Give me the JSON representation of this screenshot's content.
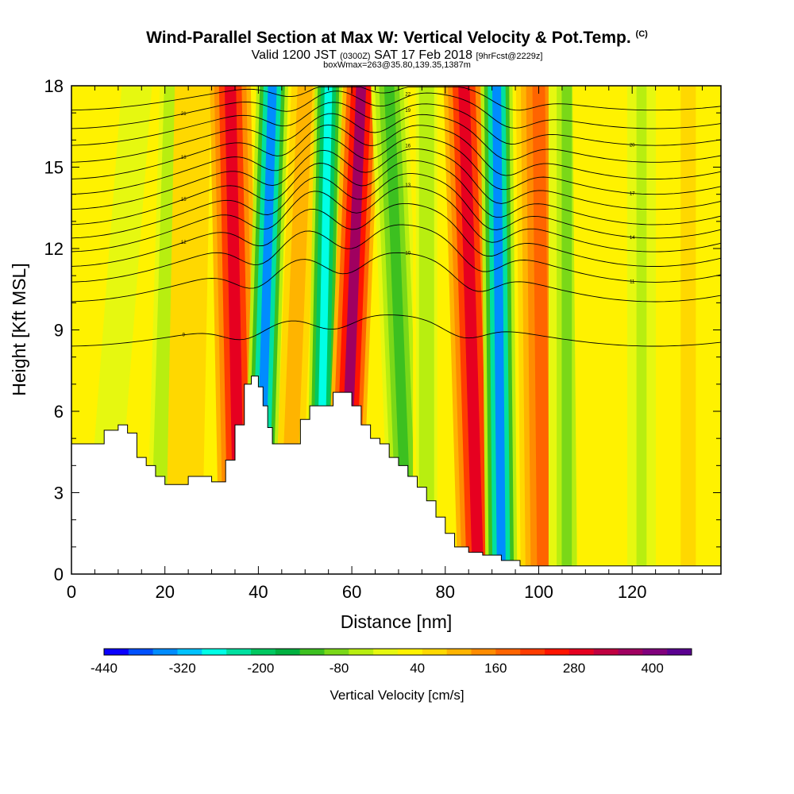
{
  "header": {
    "title": "Wind-Parallel Section at Max W: Vertical Velocity & Pot.Temp.",
    "copyright": "(C)",
    "valid_prefix": "Valid 1200 JST",
    "valid_utc": "(0300Z)",
    "valid_date": "SAT 17 Feb 2018",
    "forecast": "[9hrFcst@2229z]",
    "box_info": "boxWmax=263@35.80,139.35,1387m"
  },
  "chart_data": {
    "type": "heatmap",
    "xlabel": "Distance [nm]",
    "ylabel": "Height [Kft MSL]",
    "xlim": [
      0,
      139
    ],
    "ylim": [
      0,
      18
    ],
    "x_ticks": [
      0,
      20,
      40,
      60,
      80,
      100,
      120
    ],
    "y_ticks": [
      0,
      3,
      6,
      9,
      12,
      15,
      18
    ],
    "colorbar": {
      "label": "Vertical Velocity [cm/s]",
      "tick_values": [
        -440,
        -320,
        -200,
        -80,
        40,
        160,
        280,
        400
      ],
      "tick_labels": [
        "-440",
        "-320",
        "-200",
        "-80",
        "40",
        "160",
        "280",
        "400"
      ],
      "range": [
        -440,
        460
      ],
      "colors": [
        "#0a00ff",
        "#0050ff",
        "#008cff",
        "#00c2ff",
        "#00ffe6",
        "#00e0a0",
        "#00c860",
        "#00b040",
        "#3cc020",
        "#7ad818",
        "#b8ee10",
        "#e6f810",
        "#fff200",
        "#ffd800",
        "#ffb400",
        "#ff8c00",
        "#ff6400",
        "#ff3c00",
        "#ff1400",
        "#e60020",
        "#c00040",
        "#a00060",
        "#80007c",
        "#5a0090"
      ]
    },
    "bands": [
      {
        "x_top": 4,
        "x_bottom": 0,
        "width": 7,
        "w": 40
      },
      {
        "x_top": 14,
        "x_bottom": 6,
        "width": 6,
        "w": -20
      },
      {
        "x_top": 22,
        "x_bottom": 19,
        "width": 4,
        "w": -60
      },
      {
        "x_top": 26,
        "x_bottom": 24,
        "width": 4,
        "w": 80
      },
      {
        "x_top": 34,
        "x_bottom": 36,
        "width": 4.5,
        "w": 300
      },
      {
        "x_top": 43,
        "x_bottom": 40,
        "width": 3.5,
        "w": -360
      },
      {
        "x_top": 50,
        "x_bottom": 46,
        "width": 3,
        "w": 120
      },
      {
        "x_top": 55,
        "x_bottom": 53,
        "width": 3,
        "w": -280
      },
      {
        "x_top": 62,
        "x_bottom": 58,
        "width": 4,
        "w": 360
      },
      {
        "x_top": 68,
        "x_bottom": 72,
        "width": 4,
        "w": -120
      },
      {
        "x_top": 76,
        "x_bottom": 76,
        "width": 3,
        "w": -60
      },
      {
        "x_top": 84,
        "x_bottom": 87,
        "width": 4.5,
        "w": 300
      },
      {
        "x_top": 91,
        "x_bottom": 92,
        "width": 3.5,
        "w": -340
      },
      {
        "x_top": 100,
        "x_bottom": 101,
        "width": 5,
        "w": 180
      },
      {
        "x_top": 106,
        "x_bottom": 106,
        "width": 4,
        "w": -100
      },
      {
        "x_top": 115,
        "x_bottom": 116,
        "width": 8,
        "w": 40
      },
      {
        "x_top": 122,
        "x_bottom": 122,
        "width": 4,
        "w": -40
      },
      {
        "x_top": 132,
        "x_bottom": 132,
        "width": 6,
        "w": 50
      }
    ],
    "terrain": [
      [
        0,
        4.8
      ],
      [
        3,
        4.8
      ],
      [
        6,
        4.8
      ],
      [
        7,
        5.3
      ],
      [
        10,
        5.5
      ],
      [
        12,
        5.2
      ],
      [
        14,
        4.3
      ],
      [
        16,
        4.0
      ],
      [
        18,
        3.6
      ],
      [
        20,
        3.3
      ],
      [
        23,
        3.3
      ],
      [
        25,
        3.6
      ],
      [
        27,
        3.6
      ],
      [
        30,
        3.4
      ],
      [
        33,
        4.2
      ],
      [
        35,
        5.5
      ],
      [
        37,
        7.0
      ],
      [
        38.5,
        7.3
      ],
      [
        40,
        6.9
      ],
      [
        41,
        6.2
      ],
      [
        42,
        5.4
      ],
      [
        43,
        4.8
      ],
      [
        47,
        4.8
      ],
      [
        49,
        5.7
      ],
      [
        51,
        6.2
      ],
      [
        54,
        6.2
      ],
      [
        56,
        6.7
      ],
      [
        58,
        6.7
      ],
      [
        60,
        6.2
      ],
      [
        62,
        5.5
      ],
      [
        64,
        5.0
      ],
      [
        66,
        4.8
      ],
      [
        68,
        4.3
      ],
      [
        70,
        4.0
      ],
      [
        72,
        3.6
      ],
      [
        74,
        3.2
      ],
      [
        76,
        2.7
      ],
      [
        78,
        2.1
      ],
      [
        80,
        1.5
      ],
      [
        82,
        1.0
      ],
      [
        85,
        0.8
      ],
      [
        88,
        0.7
      ],
      [
        92,
        0.5
      ],
      [
        96,
        0.3
      ],
      [
        139,
        0.3
      ]
    ],
    "isentropes": [
      {
        "base": 9.0,
        "amp": 1.0,
        "label": "9"
      },
      {
        "base": 11.0,
        "amp": 1.6,
        "label": "10"
      },
      {
        "base": 11.9,
        "amp": 1.9,
        "label": "11"
      },
      {
        "base": 12.6,
        "amp": 2.1,
        "label": "12"
      },
      {
        "base": 13.2,
        "amp": 2.2,
        "label": "13"
      },
      {
        "base": 13.7,
        "amp": 2.2,
        "label": "14"
      },
      {
        "base": 14.2,
        "amp": 2.2,
        "label": "15"
      },
      {
        "base": 14.7,
        "amp": 2.1,
        "label": "16"
      },
      {
        "base": 15.2,
        "amp": 2.0,
        "label": "17"
      },
      {
        "base": 15.7,
        "amp": 1.9,
        "label": "18"
      },
      {
        "base": 16.2,
        "amp": 1.7,
        "label": "19"
      },
      {
        "base": 16.7,
        "amp": 1.5,
        "label": "20"
      },
      {
        "base": 17.2,
        "amp": 1.3,
        "label": "21"
      },
      {
        "base": 17.7,
        "amp": 1.0,
        "label": "22"
      }
    ]
  }
}
